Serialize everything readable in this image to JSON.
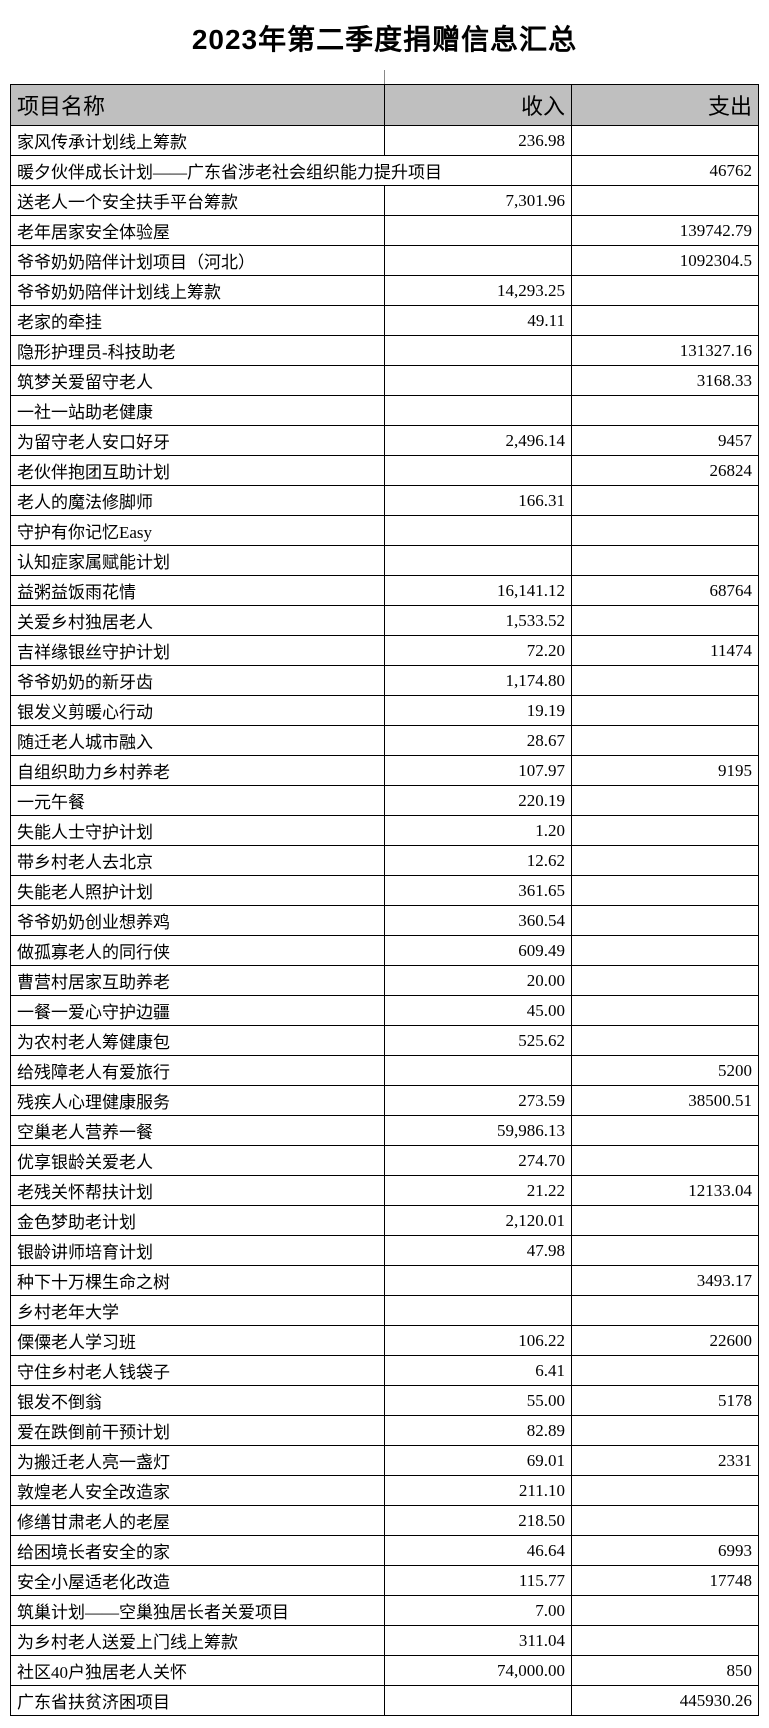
{
  "title": "2023年第二季度捐赠信息汇总",
  "headers": {
    "name": "项目名称",
    "income": "收入",
    "expense": "支出"
  },
  "rows": [
    {
      "name": "家风传承计划线上筹款",
      "income": "236.98",
      "expense": ""
    },
    {
      "name": "暖夕伙伴成长计划——广东省涉老社会组织能力提升项目",
      "income": "",
      "expense": "46762",
      "nameSpan": 2
    },
    {
      "name": "送老人一个安全扶手平台筹款",
      "income": "7,301.96",
      "expense": ""
    },
    {
      "name": "老年居家安全体验屋",
      "income": "",
      "expense": "139742.79"
    },
    {
      "name": "爷爷奶奶陪伴计划项目（河北）",
      "income": "",
      "expense": "1092304.5"
    },
    {
      "name": "爷爷奶奶陪伴计划线上筹款",
      "income": "14,293.25",
      "expense": ""
    },
    {
      "name": "老家的牵挂",
      "income": "49.11",
      "expense": ""
    },
    {
      "name": "隐形护理员-科技助老",
      "income": "",
      "expense": "131327.16"
    },
    {
      "name": "筑梦关爱留守老人",
      "income": "",
      "expense": "3168.33"
    },
    {
      "name": "一社一站助老健康",
      "income": "",
      "expense": ""
    },
    {
      "name": "为留守老人安口好牙",
      "income": "2,496.14",
      "expense": "9457"
    },
    {
      "name": "老伙伴抱团互助计划",
      "income": "",
      "expense": "26824"
    },
    {
      "name": "老人的魔法修脚师",
      "income": "166.31",
      "expense": ""
    },
    {
      "name": "守护有你记忆Easy",
      "income": "",
      "expense": ""
    },
    {
      "name": "认知症家属赋能计划",
      "income": "",
      "expense": ""
    },
    {
      "name": "益粥益饭雨花情",
      "income": "16,141.12",
      "expense": "68764"
    },
    {
      "name": "关爱乡村独居老人",
      "income": "1,533.52",
      "expense": ""
    },
    {
      "name": "吉祥缘银丝守护计划",
      "income": "72.20",
      "expense": "11474"
    },
    {
      "name": "爷爷奶奶的新牙齿",
      "income": "1,174.80",
      "expense": ""
    },
    {
      "name": "银发义剪暖心行动",
      "income": "19.19",
      "expense": ""
    },
    {
      "name": "随迁老人城市融入",
      "income": "28.67",
      "expense": ""
    },
    {
      "name": "自组织助力乡村养老",
      "income": "107.97",
      "expense": "9195"
    },
    {
      "name": "一元午餐",
      "income": "220.19",
      "expense": ""
    },
    {
      "name": "失能人士守护计划",
      "income": "1.20",
      "expense": ""
    },
    {
      "name": "带乡村老人去北京",
      "income": "12.62",
      "expense": ""
    },
    {
      "name": "失能老人照护计划",
      "income": "361.65",
      "expense": ""
    },
    {
      "name": "爷爷奶奶创业想养鸡",
      "income": "360.54",
      "expense": ""
    },
    {
      "name": "做孤寡老人的同行侠",
      "income": "609.49",
      "expense": ""
    },
    {
      "name": "曹营村居家互助养老",
      "income": "20.00",
      "expense": ""
    },
    {
      "name": "一餐一爱心守护边疆",
      "income": "45.00",
      "expense": ""
    },
    {
      "name": "为农村老人筹健康包",
      "income": "525.62",
      "expense": ""
    },
    {
      "name": "给残障老人有爱旅行",
      "income": "",
      "expense": "5200"
    },
    {
      "name": "残疾人心理健康服务",
      "income": "273.59",
      "expense": "38500.51"
    },
    {
      "name": "空巢老人营养一餐",
      "income": "59,986.13",
      "expense": ""
    },
    {
      "name": "优享银龄关爱老人",
      "income": "274.70",
      "expense": ""
    },
    {
      "name": "老残关怀帮扶计划",
      "income": "21.22",
      "expense": "12133.04"
    },
    {
      "name": "金色梦助老计划",
      "income": "2,120.01",
      "expense": ""
    },
    {
      "name": "银龄讲师培育计划",
      "income": "47.98",
      "expense": ""
    },
    {
      "name": "种下十万棵生命之树",
      "income": "",
      "expense": "3493.17"
    },
    {
      "name": "乡村老年大学",
      "income": "",
      "expense": ""
    },
    {
      "name": "傈僳老人学习班",
      "income": "106.22",
      "expense": "22600"
    },
    {
      "name": "守住乡村老人钱袋子",
      "income": "6.41",
      "expense": ""
    },
    {
      "name": "银发不倒翁",
      "income": "55.00",
      "expense": "5178"
    },
    {
      "name": "爱在跌倒前干预计划",
      "income": "82.89",
      "expense": ""
    },
    {
      "name": "为搬迁老人亮一盏灯",
      "income": "69.01",
      "expense": "2331"
    },
    {
      "name": "敦煌老人安全改造家",
      "income": "211.10",
      "expense": ""
    },
    {
      "name": "修缮甘肃老人的老屋",
      "income": "218.50",
      "expense": ""
    },
    {
      "name": "给困境长者安全的家",
      "income": "46.64",
      "expense": "6993"
    },
    {
      "name": "安全小屋适老化改造",
      "income": "115.77",
      "expense": "17748"
    },
    {
      "name": "筑巢计划——空巢独居长者关爱项目",
      "income": "7.00",
      "expense": ""
    },
    {
      "name": "为乡村老人送爱上门线上筹款",
      "income": "311.04",
      "expense": ""
    },
    {
      "name": "社区40户独居老人关怀",
      "income": "74,000.00",
      "expense": "850"
    },
    {
      "name": "广东省扶贫济困项目",
      "income": "",
      "expense": "445930.26"
    }
  ]
}
